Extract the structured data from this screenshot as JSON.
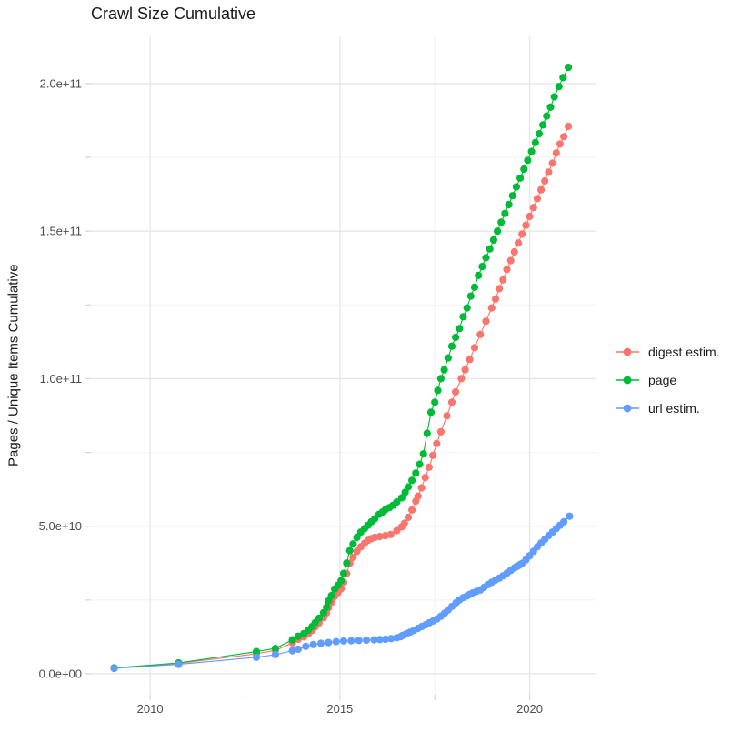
{
  "title": "Crawl Size Cumulative",
  "axes": {
    "y_title": "Pages / Unique Items Cumulative",
    "x_ticks": {
      "labels": [
        "2010",
        "2015",
        "2020"
      ],
      "values": [
        2010,
        2015,
        2020
      ],
      "minor": [
        2012.5,
        2017.5
      ]
    },
    "y_ticks": {
      "labels": [
        "0.0e+00",
        "5.0e+10",
        "1.0e+11",
        "1.5e+11",
        "2.0e+11"
      ],
      "values": [
        0,
        50000000000.0,
        100000000000.0,
        150000000000.0,
        200000000000.0
      ],
      "minor": [
        25000000000.0,
        75000000000.0,
        125000000000.0,
        175000000000.0
      ]
    },
    "x_range": [
      2008.44,
      2021.76
    ],
    "y_range": [
      -7100000000.0,
      216000000000.0
    ]
  },
  "legend": {
    "items": [
      {
        "label": "digest estim.",
        "color": "#F8766D"
      },
      {
        "label": "page",
        "color": "#00BA38"
      },
      {
        "label": "url estim.",
        "color": "#619CFF"
      }
    ]
  },
  "style_colors": {
    "grid_major": "#e6e6e6",
    "grid_minor": "#f2f2f2",
    "axis_tick": "#d4d4d4",
    "tick_text": "#4d4d4d"
  },
  "chart_data": {
    "type": "scatter",
    "title": "Crawl Size Cumulative",
    "xlabel": "",
    "ylabel": "Pages / Unique Items Cumulative",
    "xlim": [
      2008.44,
      2021.76
    ],
    "ylim": [
      -7100000000.0,
      216000000000.0
    ],
    "grid": true,
    "legend_position": "right",
    "series": [
      {
        "name": "digest estim.",
        "color": "#F8766D",
        "points": [
          [
            2009.05,
            1900000000.0
          ],
          [
            2010.75,
            3500000000.0
          ],
          [
            2012.8,
            6800000000.0
          ],
          [
            2013.3,
            7900000000.0
          ],
          [
            2013.75,
            10500000000.0
          ],
          [
            2013.9,
            11700000000.0
          ],
          [
            2014.05,
            12500000000.0
          ],
          [
            2014.17,
            13600000000.0
          ],
          [
            2014.27,
            14700000000.0
          ],
          [
            2014.35,
            15900000000.0
          ],
          [
            2014.45,
            17200000000.0
          ],
          [
            2014.57,
            19000000000.0
          ],
          [
            2014.65,
            20600000000.0
          ],
          [
            2014.7,
            22400000000.0
          ],
          [
            2014.78,
            24200000000.0
          ],
          [
            2014.86,
            26200000000.0
          ],
          [
            2014.95,
            27500000000.0
          ],
          [
            2015.03,
            28800000000.0
          ],
          [
            2015.1,
            31000000000.0
          ],
          [
            2015.18,
            34000000000.0
          ],
          [
            2015.26,
            37500000000.0
          ],
          [
            2015.35,
            39500000000.0
          ],
          [
            2015.45,
            41500000000.0
          ],
          [
            2015.55,
            43000000000.0
          ],
          [
            2015.65,
            44200000000.0
          ],
          [
            2015.74,
            45200000000.0
          ],
          [
            2015.83,
            45800000000.0
          ],
          [
            2015.92,
            46200000000.0
          ],
          [
            2016.05,
            46500000000.0
          ],
          [
            2016.2,
            46800000000.0
          ],
          [
            2016.34,
            47200000000.0
          ],
          [
            2016.5,
            48500000000.0
          ],
          [
            2016.63,
            49800000000.0
          ],
          [
            2016.7,
            51000000000.0
          ],
          [
            2016.8,
            53000000000.0
          ],
          [
            2016.9,
            55500000000.0
          ],
          [
            2017.0,
            58500000000.0
          ],
          [
            2017.06,
            60200000000.0
          ],
          [
            2017.15,
            63000000000.0
          ],
          [
            2017.25,
            66500000000.0
          ],
          [
            2017.35,
            70000000000.0
          ],
          [
            2017.45,
            74000000000.0
          ],
          [
            2017.55,
            78000000000.0
          ],
          [
            2017.66,
            82000000000.0
          ],
          [
            2017.82,
            87400000000.0
          ],
          [
            2017.95,
            92000000000.0
          ],
          [
            2018.05,
            95500000000.0
          ],
          [
            2018.2,
            100000000000.0
          ],
          [
            2018.3,
            103000000000.0
          ],
          [
            2018.42,
            106500000000.0
          ],
          [
            2018.55,
            110500000000.0
          ],
          [
            2018.7,
            115000000000.0
          ],
          [
            2018.85,
            119500000000.0
          ],
          [
            2019.0,
            124000000000.0
          ],
          [
            2019.1,
            127000000000.0
          ],
          [
            2019.2,
            130500000000.0
          ],
          [
            2019.3,
            133500000000.0
          ],
          [
            2019.4,
            137000000000.0
          ],
          [
            2019.5,
            140000000000.0
          ],
          [
            2019.6,
            143000000000.0
          ],
          [
            2019.7,
            146000000000.0
          ],
          [
            2019.8,
            149000000000.0
          ],
          [
            2019.9,
            152000000000.0
          ],
          [
            2020.0,
            155000000000.0
          ],
          [
            2020.1,
            158000000000.0
          ],
          [
            2020.2,
            161000000000.0
          ],
          [
            2020.3,
            164000000000.0
          ],
          [
            2020.4,
            167000000000.0
          ],
          [
            2020.5,
            170000000000.0
          ],
          [
            2020.6,
            173000000000.0
          ],
          [
            2020.7,
            176500000000.0
          ],
          [
            2020.8,
            179500000000.0
          ],
          [
            2020.9,
            182000000000.0
          ],
          [
            2021.02,
            185500000000.0
          ]
        ]
      },
      {
        "name": "page",
        "color": "#00BA38",
        "points": [
          [
            2009.05,
            2000000000.0
          ],
          [
            2010.75,
            3700000000.0
          ],
          [
            2012.8,
            7500000000.0
          ],
          [
            2013.3,
            8600000000.0
          ],
          [
            2013.75,
            11500000000.0
          ],
          [
            2013.9,
            12700000000.0
          ],
          [
            2014.05,
            13600000000.0
          ],
          [
            2014.17,
            14800000000.0
          ],
          [
            2014.27,
            16000000000.0
          ],
          [
            2014.35,
            17300000000.0
          ],
          [
            2014.45,
            18800000000.0
          ],
          [
            2014.57,
            20700000000.0
          ],
          [
            2014.65,
            22500000000.0
          ],
          [
            2014.7,
            24700000000.0
          ],
          [
            2014.78,
            26500000000.0
          ],
          [
            2014.86,
            28700000000.0
          ],
          [
            2014.95,
            30000000000.0
          ],
          [
            2015.03,
            31500000000.0
          ],
          [
            2015.1,
            34000000000.0
          ],
          [
            2015.18,
            37500000000.0
          ],
          [
            2015.26,
            41700000000.0
          ],
          [
            2015.35,
            44000000000.0
          ],
          [
            2015.45,
            46200000000.0
          ],
          [
            2015.55,
            48000000000.0
          ],
          [
            2015.65,
            49200000000.0
          ],
          [
            2015.74,
            50300000000.0
          ],
          [
            2015.83,
            51500000000.0
          ],
          [
            2015.92,
            52500000000.0
          ],
          [
            2016.03,
            54000000000.0
          ],
          [
            2016.12,
            54800000000.0
          ],
          [
            2016.2,
            55600000000.0
          ],
          [
            2016.3,
            56300000000.0
          ],
          [
            2016.4,
            57100000000.0
          ],
          [
            2016.5,
            58200000000.0
          ],
          [
            2016.63,
            59600000000.0
          ],
          [
            2016.72,
            61500000000.0
          ],
          [
            2016.8,
            63300000000.0
          ],
          [
            2016.9,
            65500000000.0
          ],
          [
            2017.0,
            68000000000.0
          ],
          [
            2017.1,
            71000000000.0
          ],
          [
            2017.2,
            74500000000.0
          ],
          [
            2017.3,
            81500000000.0
          ],
          [
            2017.4,
            88600000000.0
          ],
          [
            2017.5,
            92000000000.0
          ],
          [
            2017.58,
            96000000000.0
          ],
          [
            2017.66,
            100000000000.0
          ],
          [
            2017.75,
            103000000000.0
          ],
          [
            2017.85,
            107000000000.0
          ],
          [
            2017.95,
            111000000000.0
          ],
          [
            2018.05,
            114000000000.0
          ],
          [
            2018.15,
            117000000000.0
          ],
          [
            2018.25,
            121000000000.0
          ],
          [
            2018.35,
            124000000000.0
          ],
          [
            2018.45,
            128000000000.0
          ],
          [
            2018.55,
            131000000000.0
          ],
          [
            2018.65,
            135000000000.0
          ],
          [
            2018.75,
            138000000000.0
          ],
          [
            2018.85,
            141000000000.0
          ],
          [
            2018.95,
            144000000000.0
          ],
          [
            2019.05,
            147000000000.0
          ],
          [
            2019.15,
            150000000000.0
          ],
          [
            2019.25,
            153000000000.0
          ],
          [
            2019.35,
            156000000000.0
          ],
          [
            2019.45,
            159000000000.0
          ],
          [
            2019.55,
            162000000000.0
          ],
          [
            2019.65,
            165000000000.0
          ],
          [
            2019.75,
            168000000000.0
          ],
          [
            2019.85,
            171000000000.0
          ],
          [
            2019.95,
            174000000000.0
          ],
          [
            2020.05,
            177000000000.0
          ],
          [
            2020.15,
            180000000000.0
          ],
          [
            2020.25,
            183000000000.0
          ],
          [
            2020.35,
            186000000000.0
          ],
          [
            2020.45,
            189000000000.0
          ],
          [
            2020.55,
            192000000000.0
          ],
          [
            2020.65,
            195500000000.0
          ],
          [
            2020.77,
            199000000000.0
          ],
          [
            2020.88,
            202000000000.0
          ],
          [
            2021.02,
            205500000000.0
          ]
        ]
      },
      {
        "name": "url estim.",
        "color": "#619CFF",
        "points": [
          [
            2009.05,
            1800000000.0
          ],
          [
            2010.75,
            3200000000.0
          ],
          [
            2012.8,
            5600000000.0
          ],
          [
            2013.3,
            6500000000.0
          ],
          [
            2013.75,
            7800000000.0
          ],
          [
            2013.9,
            8300000000.0
          ],
          [
            2014.1,
            9300000000.0
          ],
          [
            2014.3,
            9900000000.0
          ],
          [
            2014.5,
            10300000000.0
          ],
          [
            2014.7,
            10600000000.0
          ],
          [
            2014.9,
            10900000000.0
          ],
          [
            2015.1,
            11100000000.0
          ],
          [
            2015.3,
            11200000000.0
          ],
          [
            2015.5,
            11300000000.0
          ],
          [
            2015.7,
            11400000000.0
          ],
          [
            2015.9,
            11500000000.0
          ],
          [
            2016.05,
            11600000000.0
          ],
          [
            2016.2,
            11700000000.0
          ],
          [
            2016.35,
            11900000000.0
          ],
          [
            2016.5,
            12200000000.0
          ],
          [
            2016.6,
            12600000000.0
          ],
          [
            2016.65,
            13000000000.0
          ],
          [
            2016.75,
            13600000000.0
          ],
          [
            2016.85,
            14100000000.0
          ],
          [
            2016.95,
            14700000000.0
          ],
          [
            2017.06,
            15400000000.0
          ],
          [
            2017.16,
            16000000000.0
          ],
          [
            2017.26,
            16600000000.0
          ],
          [
            2017.36,
            17300000000.0
          ],
          [
            2017.46,
            17900000000.0
          ],
          [
            2017.56,
            18600000000.0
          ],
          [
            2017.66,
            19500000000.0
          ],
          [
            2017.76,
            20500000000.0
          ],
          [
            2017.85,
            21600000000.0
          ],
          [
            2017.95,
            22800000000.0
          ],
          [
            2018.06,
            24100000000.0
          ],
          [
            2018.15,
            25000000000.0
          ],
          [
            2018.25,
            25800000000.0
          ],
          [
            2018.35,
            26400000000.0
          ],
          [
            2018.42,
            26900000000.0
          ],
          [
            2018.5,
            27400000000.0
          ],
          [
            2018.6,
            27900000000.0
          ],
          [
            2018.7,
            28400000000.0
          ],
          [
            2018.8,
            29300000000.0
          ],
          [
            2018.9,
            30200000000.0
          ],
          [
            2019.0,
            31000000000.0
          ],
          [
            2019.1,
            31800000000.0
          ],
          [
            2019.2,
            32400000000.0
          ],
          [
            2019.3,
            33200000000.0
          ],
          [
            2019.4,
            34100000000.0
          ],
          [
            2019.5,
            35000000000.0
          ],
          [
            2019.6,
            35900000000.0
          ],
          [
            2019.65,
            36300000000.0
          ],
          [
            2019.7,
            36600000000.0
          ],
          [
            2019.75,
            37000000000.0
          ],
          [
            2019.8,
            37400000000.0
          ],
          [
            2019.9,
            38600000000.0
          ],
          [
            2020.0,
            40000000000.0
          ],
          [
            2020.1,
            41500000000.0
          ],
          [
            2020.2,
            43000000000.0
          ],
          [
            2020.3,
            44300000000.0
          ],
          [
            2020.4,
            45500000000.0
          ],
          [
            2020.5,
            46800000000.0
          ],
          [
            2020.6,
            48000000000.0
          ],
          [
            2020.7,
            49200000000.0
          ],
          [
            2020.8,
            50300000000.0
          ],
          [
            2020.9,
            51500000000.0
          ],
          [
            2021.05,
            53400000000.0
          ]
        ]
      }
    ]
  }
}
